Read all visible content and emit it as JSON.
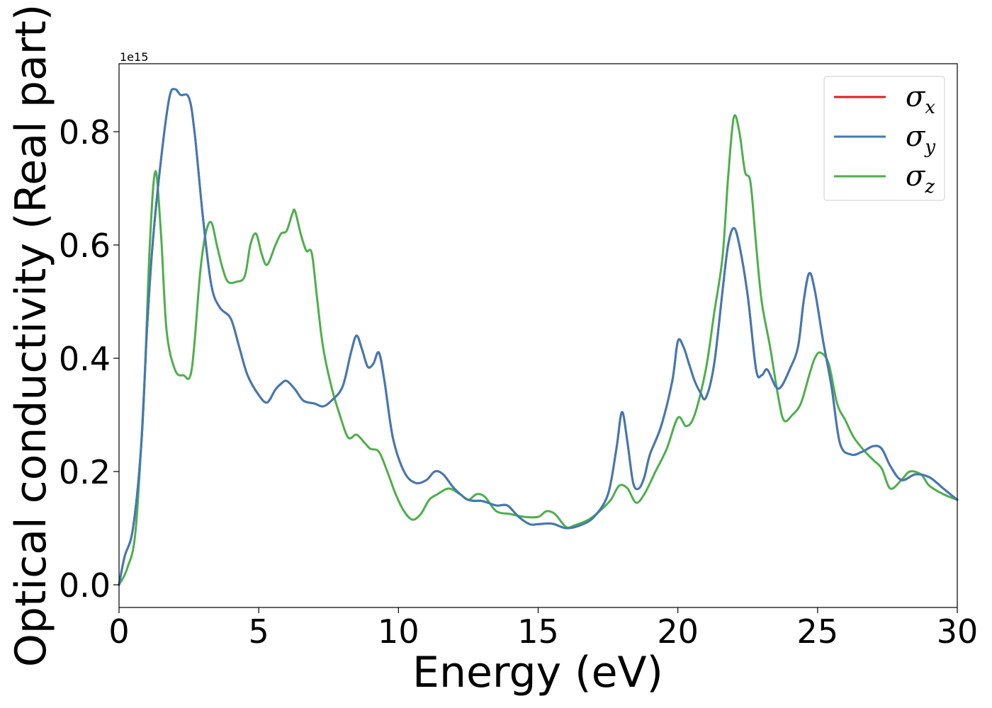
{
  "chart_data": {
    "type": "line",
    "title": "",
    "xlabel": "Energy (eV)",
    "ylabel": "Optical conductivity (Real part)",
    "offset_text": "1e15",
    "xlim": [
      0,
      30
    ],
    "ylim": [
      -0.04,
      0.92
    ],
    "xticks": [
      0,
      5,
      10,
      15,
      20,
      25,
      30
    ],
    "xtick_labels": [
      "0",
      "5",
      "10",
      "15",
      "20",
      "25",
      "30"
    ],
    "yticks": [
      0.0,
      0.2,
      0.4,
      0.6,
      0.8
    ],
    "ytick_labels": [
      "0.0",
      "0.2",
      "0.4",
      "0.6",
      "0.8"
    ],
    "grid": false,
    "legend_position": "top-right",
    "series": [
      {
        "name": "σx",
        "symbol": "σ",
        "subscript": "x",
        "color": "#e41a1c",
        "x": [
          0,
          0.2,
          0.5,
          0.8,
          1.0,
          1.2,
          1.5,
          1.8,
          2.0,
          2.2,
          2.5,
          2.7,
          3.0,
          3.3,
          3.6,
          4.0,
          4.3,
          4.6,
          5.0,
          5.3,
          5.6,
          5.8,
          6.0,
          6.3,
          6.6,
          7.0,
          7.3,
          7.6,
          8.0,
          8.3,
          8.5,
          8.7,
          8.9,
          9.1,
          9.3,
          9.5,
          9.8,
          10.2,
          10.6,
          11.0,
          11.3,
          11.6,
          12.0,
          12.5,
          13.0,
          13.5,
          13.9,
          14.3,
          14.7,
          15.0,
          15.5,
          16.0,
          16.5,
          17.0,
          17.5,
          17.8,
          18.0,
          18.2,
          18.4,
          18.6,
          18.8,
          19.0,
          19.4,
          19.8,
          20.0,
          20.2,
          20.4,
          20.6,
          20.8,
          21.0,
          21.3,
          21.6,
          21.8,
          22.0,
          22.2,
          22.5,
          22.8,
          23.0,
          23.2,
          23.5,
          23.7,
          24.0,
          24.3,
          24.5,
          24.7,
          24.9,
          25.2,
          25.5,
          25.8,
          26.2,
          26.6,
          27.0,
          27.3,
          27.6,
          28.0,
          28.5,
          29.0,
          29.5,
          30.0
        ],
        "y": [
          0.0,
          0.05,
          0.1,
          0.25,
          0.45,
          0.6,
          0.75,
          0.86,
          0.875,
          0.865,
          0.86,
          0.8,
          0.65,
          0.53,
          0.49,
          0.47,
          0.42,
          0.37,
          0.335,
          0.322,
          0.345,
          0.355,
          0.36,
          0.345,
          0.325,
          0.32,
          0.315,
          0.325,
          0.35,
          0.41,
          0.44,
          0.415,
          0.385,
          0.39,
          0.41,
          0.36,
          0.26,
          0.2,
          0.18,
          0.185,
          0.2,
          0.195,
          0.17,
          0.15,
          0.148,
          0.14,
          0.14,
          0.12,
          0.107,
          0.107,
          0.108,
          0.1,
          0.105,
          0.12,
          0.16,
          0.24,
          0.305,
          0.25,
          0.18,
          0.17,
          0.19,
          0.23,
          0.28,
          0.36,
          0.43,
          0.42,
          0.39,
          0.36,
          0.34,
          0.33,
          0.39,
          0.52,
          0.6,
          0.63,
          0.6,
          0.51,
          0.38,
          0.37,
          0.38,
          0.35,
          0.35,
          0.38,
          0.42,
          0.5,
          0.55,
          0.52,
          0.43,
          0.35,
          0.25,
          0.23,
          0.235,
          0.245,
          0.24,
          0.21,
          0.185,
          0.195,
          0.19,
          0.17,
          0.15
        ]
      },
      {
        "name": "σy",
        "symbol": "σ",
        "subscript": "y",
        "color": "#3f7ab5",
        "x": [
          0,
          0.2,
          0.5,
          0.8,
          1.0,
          1.2,
          1.5,
          1.8,
          2.0,
          2.2,
          2.5,
          2.7,
          3.0,
          3.3,
          3.6,
          4.0,
          4.3,
          4.6,
          5.0,
          5.3,
          5.6,
          5.8,
          6.0,
          6.3,
          6.6,
          7.0,
          7.3,
          7.6,
          8.0,
          8.3,
          8.5,
          8.7,
          8.9,
          9.1,
          9.3,
          9.5,
          9.8,
          10.2,
          10.6,
          11.0,
          11.3,
          11.6,
          12.0,
          12.5,
          13.0,
          13.5,
          13.9,
          14.3,
          14.7,
          15.0,
          15.5,
          16.0,
          16.5,
          17.0,
          17.5,
          17.8,
          18.0,
          18.2,
          18.4,
          18.6,
          18.8,
          19.0,
          19.4,
          19.8,
          20.0,
          20.2,
          20.4,
          20.6,
          20.8,
          21.0,
          21.3,
          21.6,
          21.8,
          22.0,
          22.2,
          22.5,
          22.8,
          23.0,
          23.2,
          23.5,
          23.7,
          24.0,
          24.3,
          24.5,
          24.7,
          24.9,
          25.2,
          25.5,
          25.8,
          26.2,
          26.6,
          27.0,
          27.3,
          27.6,
          28.0,
          28.5,
          29.0,
          29.5,
          30.0
        ],
        "y": [
          0.0,
          0.05,
          0.1,
          0.25,
          0.45,
          0.6,
          0.75,
          0.86,
          0.875,
          0.865,
          0.86,
          0.8,
          0.65,
          0.53,
          0.49,
          0.47,
          0.42,
          0.37,
          0.335,
          0.322,
          0.345,
          0.355,
          0.36,
          0.345,
          0.325,
          0.32,
          0.315,
          0.325,
          0.35,
          0.41,
          0.44,
          0.415,
          0.385,
          0.39,
          0.41,
          0.36,
          0.26,
          0.2,
          0.18,
          0.185,
          0.2,
          0.195,
          0.17,
          0.15,
          0.148,
          0.14,
          0.14,
          0.12,
          0.107,
          0.107,
          0.108,
          0.1,
          0.105,
          0.12,
          0.16,
          0.24,
          0.305,
          0.25,
          0.18,
          0.17,
          0.19,
          0.23,
          0.28,
          0.36,
          0.43,
          0.42,
          0.39,
          0.36,
          0.34,
          0.33,
          0.39,
          0.52,
          0.6,
          0.63,
          0.6,
          0.51,
          0.38,
          0.37,
          0.38,
          0.35,
          0.35,
          0.38,
          0.42,
          0.5,
          0.55,
          0.52,
          0.43,
          0.35,
          0.25,
          0.23,
          0.235,
          0.245,
          0.24,
          0.21,
          0.185,
          0.195,
          0.19,
          0.17,
          0.15
        ]
      },
      {
        "name": "σz",
        "symbol": "σ",
        "subscript": "z",
        "color": "#4daf4a",
        "x": [
          0,
          0.3,
          0.6,
          0.9,
          1.1,
          1.3,
          1.5,
          1.7,
          2.0,
          2.3,
          2.6,
          2.9,
          3.1,
          3.3,
          3.5,
          3.7,
          3.9,
          4.2,
          4.5,
          4.7,
          4.9,
          5.1,
          5.3,
          5.6,
          5.8,
          6.0,
          6.2,
          6.3,
          6.5,
          6.7,
          6.9,
          7.1,
          7.3,
          7.6,
          7.9,
          8.2,
          8.5,
          8.8,
          9.0,
          9.3,
          9.6,
          9.9,
          10.2,
          10.5,
          10.8,
          11.1,
          11.4,
          11.8,
          12.2,
          12.5,
          12.8,
          13.1,
          13.5,
          14.0,
          14.5,
          15.0,
          15.3,
          15.6,
          16.0,
          16.3,
          16.8,
          17.2,
          17.6,
          17.9,
          18.2,
          18.5,
          18.8,
          19.2,
          19.6,
          20.0,
          20.3,
          20.6,
          21.0,
          21.3,
          21.6,
          21.8,
          22.0,
          22.2,
          22.4,
          22.6,
          22.8,
          23.0,
          23.3,
          23.6,
          23.8,
          24.1,
          24.4,
          24.7,
          24.9,
          25.1,
          25.4,
          25.7,
          26.0,
          26.3,
          26.7,
          27.0,
          27.3,
          27.6,
          28.0,
          28.3,
          28.7,
          29.0,
          29.5,
          30.0
        ],
        "y": [
          0.0,
          0.03,
          0.1,
          0.35,
          0.6,
          0.73,
          0.62,
          0.45,
          0.38,
          0.37,
          0.38,
          0.55,
          0.62,
          0.64,
          0.6,
          0.56,
          0.535,
          0.535,
          0.545,
          0.6,
          0.62,
          0.585,
          0.565,
          0.6,
          0.62,
          0.625,
          0.655,
          0.66,
          0.62,
          0.59,
          0.585,
          0.5,
          0.42,
          0.35,
          0.3,
          0.26,
          0.265,
          0.25,
          0.24,
          0.235,
          0.2,
          0.16,
          0.13,
          0.115,
          0.125,
          0.15,
          0.16,
          0.17,
          0.16,
          0.15,
          0.16,
          0.155,
          0.13,
          0.125,
          0.12,
          0.12,
          0.13,
          0.125,
          0.102,
          0.105,
          0.115,
          0.13,
          0.15,
          0.175,
          0.17,
          0.145,
          0.16,
          0.2,
          0.24,
          0.295,
          0.28,
          0.3,
          0.38,
          0.48,
          0.58,
          0.72,
          0.825,
          0.8,
          0.73,
          0.71,
          0.6,
          0.5,
          0.42,
          0.33,
          0.29,
          0.3,
          0.32,
          0.37,
          0.4,
          0.41,
          0.39,
          0.32,
          0.29,
          0.26,
          0.235,
          0.22,
          0.205,
          0.17,
          0.185,
          0.2,
          0.195,
          0.175,
          0.16,
          0.15
        ]
      }
    ]
  }
}
